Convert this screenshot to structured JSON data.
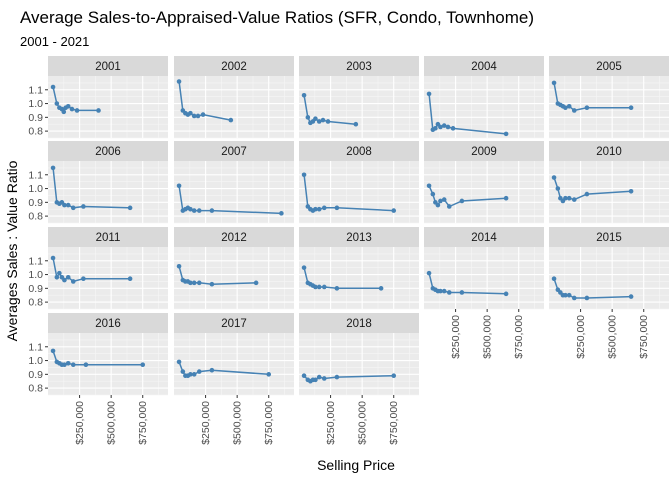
{
  "chart_data": {
    "type": "line",
    "title": "Average Sales-to-Appraised-Value Ratios (SFR, Condo, Townhome)",
    "subtitle": "2001 - 2021",
    "xlabel": "Selling Price",
    "ylabel": "Averages Sales : Value Ratio",
    "xlim": [
      0,
      950000
    ],
    "ylim": [
      0.75,
      1.2
    ],
    "x_tick_labels": [
      "$250,000",
      "$500,000",
      "$750,000"
    ],
    "x_tick_values": [
      250000,
      500000,
      750000
    ],
    "y_tick_labels": [
      "0.8",
      "0.9",
      "1.0",
      "1.1"
    ],
    "y_tick_values": [
      0.8,
      0.9,
      1.0,
      1.1
    ],
    "grid": true,
    "facets": "wrap 5 columns",
    "series_color": "#4682B4",
    "panel_background": "#EBEBEB",
    "strip_background": "#D9D9D9",
    "series": [
      {
        "name": "2001",
        "x": [
          40000,
          70000,
          90000,
          110000,
          125000,
          140000,
          160000,
          190000,
          230000,
          400000
        ],
        "y": [
          1.12,
          1.0,
          0.97,
          0.96,
          0.94,
          0.97,
          0.98,
          0.96,
          0.95,
          0.95
        ]
      },
      {
        "name": "2002",
        "x": [
          40000,
          70000,
          90000,
          110000,
          130000,
          160000,
          190000,
          230000,
          450000
        ],
        "y": [
          1.16,
          0.95,
          0.93,
          0.92,
          0.93,
          0.91,
          0.91,
          0.92,
          0.88
        ]
      },
      {
        "name": "2003",
        "x": [
          40000,
          70000,
          90000,
          110000,
          130000,
          160000,
          190000,
          230000,
          450000
        ],
        "y": [
          1.06,
          0.9,
          0.86,
          0.87,
          0.89,
          0.87,
          0.88,
          0.87,
          0.85
        ]
      },
      {
        "name": "2004",
        "x": [
          40000,
          70000,
          90000,
          110000,
          130000,
          160000,
          190000,
          230000,
          650000
        ],
        "y": [
          1.07,
          0.81,
          0.82,
          0.85,
          0.83,
          0.84,
          0.83,
          0.82,
          0.78
        ]
      },
      {
        "name": "2005",
        "x": [
          40000,
          70000,
          90000,
          110000,
          130000,
          160000,
          200000,
          300000,
          650000
        ],
        "y": [
          1.15,
          1.0,
          0.99,
          0.98,
          0.97,
          0.98,
          0.95,
          0.97,
          0.97
        ]
      },
      {
        "name": "2006",
        "x": [
          40000,
          70000,
          90000,
          110000,
          130000,
          160000,
          200000,
          280000,
          650000
        ],
        "y": [
          1.15,
          0.9,
          0.89,
          0.9,
          0.88,
          0.88,
          0.86,
          0.87,
          0.86
        ]
      },
      {
        "name": "2007",
        "x": [
          40000,
          70000,
          90000,
          110000,
          130000,
          160000,
          200000,
          300000,
          850000
        ],
        "y": [
          1.02,
          0.84,
          0.85,
          0.86,
          0.85,
          0.84,
          0.84,
          0.84,
          0.82
        ]
      },
      {
        "name": "2008",
        "x": [
          40000,
          70000,
          90000,
          110000,
          130000,
          160000,
          200000,
          300000,
          750000
        ],
        "y": [
          1.1,
          0.87,
          0.85,
          0.84,
          0.85,
          0.85,
          0.86,
          0.86,
          0.84
        ]
      },
      {
        "name": "2009",
        "x": [
          40000,
          70000,
          90000,
          110000,
          130000,
          160000,
          200000,
          300000,
          650000
        ],
        "y": [
          1.02,
          0.96,
          0.9,
          0.88,
          0.91,
          0.92,
          0.87,
          0.91,
          0.93
        ]
      },
      {
        "name": "2010",
        "x": [
          40000,
          70000,
          90000,
          110000,
          130000,
          160000,
          200000,
          300000,
          650000
        ],
        "y": [
          1.08,
          1.0,
          0.93,
          0.91,
          0.93,
          0.93,
          0.92,
          0.96,
          0.98
        ]
      },
      {
        "name": "2011",
        "x": [
          40000,
          70000,
          90000,
          110000,
          130000,
          160000,
          200000,
          280000,
          650000
        ],
        "y": [
          1.12,
          0.98,
          1.01,
          0.98,
          0.96,
          0.98,
          0.95,
          0.97,
          0.97
        ]
      },
      {
        "name": "2012",
        "x": [
          40000,
          70000,
          90000,
          110000,
          130000,
          160000,
          200000,
          300000,
          650000
        ],
        "y": [
          1.06,
          0.96,
          0.95,
          0.95,
          0.94,
          0.94,
          0.94,
          0.93,
          0.94
        ]
      },
      {
        "name": "2013",
        "x": [
          40000,
          70000,
          90000,
          110000,
          130000,
          160000,
          200000,
          300000,
          650000
        ],
        "y": [
          1.05,
          0.94,
          0.93,
          0.92,
          0.91,
          0.91,
          0.91,
          0.9,
          0.9
        ]
      },
      {
        "name": "2014",
        "x": [
          40000,
          70000,
          90000,
          110000,
          130000,
          160000,
          200000,
          300000,
          650000
        ],
        "y": [
          1.01,
          0.9,
          0.89,
          0.88,
          0.88,
          0.88,
          0.87,
          0.87,
          0.86
        ]
      },
      {
        "name": "2015",
        "x": [
          40000,
          70000,
          90000,
          110000,
          130000,
          160000,
          200000,
          300000,
          650000
        ],
        "y": [
          0.97,
          0.89,
          0.87,
          0.85,
          0.85,
          0.85,
          0.83,
          0.83,
          0.84
        ]
      },
      {
        "name": "2016",
        "x": [
          40000,
          70000,
          90000,
          110000,
          130000,
          160000,
          200000,
          300000,
          750000
        ],
        "y": [
          1.07,
          0.99,
          0.98,
          0.97,
          0.97,
          0.98,
          0.97,
          0.97,
          0.97
        ]
      },
      {
        "name": "2017",
        "x": [
          40000,
          70000,
          90000,
          110000,
          130000,
          160000,
          200000,
          300000,
          750000
        ],
        "y": [
          0.99,
          0.92,
          0.89,
          0.89,
          0.9,
          0.9,
          0.92,
          0.93,
          0.9
        ]
      },
      {
        "name": "2018",
        "x": [
          40000,
          70000,
          90000,
          110000,
          130000,
          160000,
          200000,
          300000,
          750000
        ],
        "y": [
          0.89,
          0.86,
          0.85,
          0.86,
          0.86,
          0.88,
          0.87,
          0.88,
          0.89
        ]
      }
    ]
  }
}
